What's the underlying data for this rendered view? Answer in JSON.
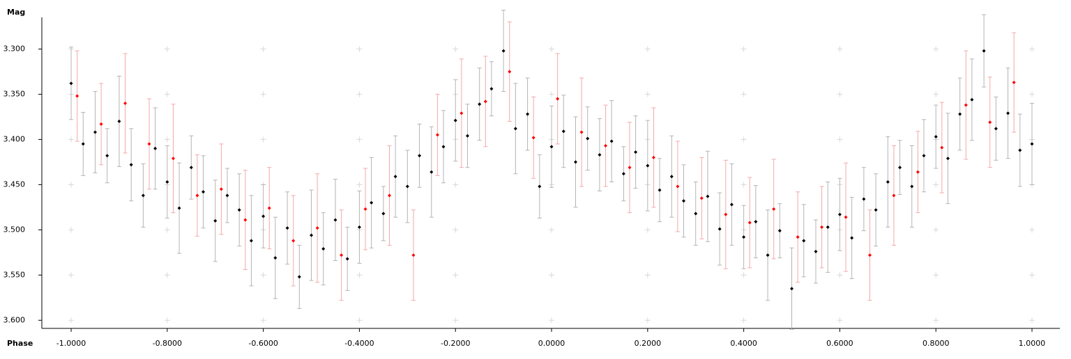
{
  "chart_data": {
    "type": "scatter",
    "x_label": "Phase",
    "y_label": "Mag",
    "xlim": [
      -1.061,
      1.058
    ],
    "ylim": [
      3.609,
      3.265
    ],
    "xticks": [
      {
        "value": -1.0,
        "label": "-1.0000"
      },
      {
        "value": -0.8,
        "label": "-0.8000"
      },
      {
        "value": -0.6,
        "label": "-0.6000"
      },
      {
        "value": -0.4,
        "label": "-0.4000"
      },
      {
        "value": -0.2,
        "label": "-0.2000"
      },
      {
        "value": 0,
        "label": "0.0000"
      },
      {
        "value": 0.2,
        "label": "0.2000"
      },
      {
        "value": 0.4,
        "label": "0.4000"
      },
      {
        "value": 0.6,
        "label": "0.6000"
      },
      {
        "value": 0.8,
        "label": "0.8000"
      },
      {
        "value": 1.0,
        "label": "1.0000"
      }
    ],
    "yticks": [
      {
        "value": 3.3,
        "label": "3.300"
      },
      {
        "value": 3.35,
        "label": "3.350"
      },
      {
        "value": 3.4,
        "label": "3.400"
      },
      {
        "value": 3.45,
        "label": "3.450"
      },
      {
        "value": 3.5,
        "label": "3.500"
      },
      {
        "value": 3.55,
        "label": "3.550"
      },
      {
        "value": 3.6,
        "label": "3.600"
      }
    ],
    "grid": true,
    "series": [
      {
        "color": "#000000",
        "error_color": "#b4b4b4",
        "x": [
          -1.0,
          -0.975,
          -0.95,
          -0.925,
          -0.9,
          -0.875,
          -0.85,
          -0.825,
          -0.8,
          -0.775,
          -0.75,
          -0.725,
          -0.7,
          -0.675,
          -0.65,
          -0.625,
          -0.6,
          -0.575,
          -0.55,
          -0.525,
          -0.5,
          -0.475,
          -0.45,
          -0.425,
          -0.4,
          -0.375,
          -0.35,
          -0.325,
          -0.3,
          -0.275,
          -0.25,
          -0.225,
          -0.2,
          -0.175,
          -0.15,
          -0.125,
          -0.1,
          -0.075,
          -0.05,
          -0.025,
          0.0,
          0.025,
          0.05,
          0.075,
          0.1,
          0.125,
          0.15,
          0.175,
          0.2,
          0.225,
          0.25,
          0.275,
          0.3,
          0.325,
          0.35,
          0.375,
          0.4,
          0.425,
          0.45,
          0.475,
          0.5,
          0.525,
          0.55,
          0.575,
          0.6,
          0.625,
          0.65,
          0.675,
          0.7,
          0.725,
          0.75,
          0.775,
          0.8,
          0.825,
          0.85,
          0.875,
          0.9,
          0.925,
          0.95,
          0.975,
          1.0
        ],
        "values": [
          3.338,
          3.405,
          3.392,
          3.418,
          3.38,
          3.428,
          3.462,
          3.41,
          3.447,
          3.476,
          3.431,
          3.458,
          3.49,
          3.462,
          3.478,
          3.512,
          3.485,
          3.531,
          3.498,
          3.552,
          3.506,
          3.521,
          3.489,
          3.532,
          3.497,
          3.47,
          3.482,
          3.441,
          3.452,
          3.418,
          3.436,
          3.408,
          3.379,
          3.396,
          3.361,
          3.344,
          3.302,
          3.388,
          3.372,
          3.452,
          3.408,
          3.391,
          3.425,
          3.399,
          3.417,
          3.402,
          3.438,
          3.414,
          3.429,
          3.456,
          3.441,
          3.468,
          3.482,
          3.463,
          3.499,
          3.472,
          3.508,
          3.491,
          3.528,
          3.501,
          3.565,
          3.512,
          3.524,
          3.497,
          3.483,
          3.509,
          3.466,
          3.478,
          3.447,
          3.431,
          3.452,
          3.418,
          3.397,
          3.421,
          3.372,
          3.356,
          3.302,
          3.388,
          3.371,
          3.412,
          3.405
        ],
        "errors": [
          0.04,
          0.035,
          0.045,
          0.03,
          0.05,
          0.04,
          0.035,
          0.045,
          0.04,
          0.05,
          0.035,
          0.04,
          0.045,
          0.03,
          0.04,
          0.05,
          0.035,
          0.045,
          0.04,
          0.035,
          0.05,
          0.04,
          0.045,
          0.035,
          0.04,
          0.05,
          0.03,
          0.045,
          0.04,
          0.035,
          0.05,
          0.04,
          0.045,
          0.035,
          0.04,
          0.03,
          0.045,
          0.05,
          0.04,
          0.035,
          0.045,
          0.04,
          0.05,
          0.035,
          0.04,
          0.045,
          0.03,
          0.04,
          0.05,
          0.035,
          0.045,
          0.04,
          0.035,
          0.05,
          0.04,
          0.045,
          0.035,
          0.04,
          0.05,
          0.03,
          0.045,
          0.04,
          0.035,
          0.05,
          0.04,
          0.045,
          0.035,
          0.04,
          0.05,
          0.03,
          0.045,
          0.04,
          0.035,
          0.05,
          0.04,
          0.045,
          0.04,
          0.035,
          0.05,
          0.04,
          0.045
        ]
      },
      {
        "color": "#ff0000",
        "error_color": "#f4a8a8",
        "x": [
          -0.9875,
          -0.9375,
          -0.8875,
          -0.8375,
          -0.7875,
          -0.7375,
          -0.6875,
          -0.6375,
          -0.5875,
          -0.5375,
          -0.4875,
          -0.4375,
          -0.3875,
          -0.3375,
          -0.2875,
          -0.2375,
          -0.1875,
          -0.1375,
          -0.0875,
          -0.0375,
          0.0125,
          0.0625,
          0.1125,
          0.1625,
          0.2125,
          0.2625,
          0.3125,
          0.3625,
          0.4125,
          0.4625,
          0.5125,
          0.5625,
          0.6125,
          0.6625,
          0.7125,
          0.7625,
          0.8125,
          0.8625,
          0.9125,
          0.9625
        ],
        "values": [
          3.352,
          3.383,
          3.36,
          3.405,
          3.421,
          3.462,
          3.455,
          3.489,
          3.476,
          3.512,
          3.498,
          3.528,
          3.477,
          3.462,
          3.528,
          3.395,
          3.371,
          3.358,
          3.325,
          3.398,
          3.355,
          3.392,
          3.407,
          3.431,
          3.42,
          3.452,
          3.465,
          3.483,
          3.492,
          3.477,
          3.508,
          3.497,
          3.486,
          3.528,
          3.462,
          3.436,
          3.409,
          3.362,
          3.381,
          3.337
        ],
        "errors": [
          0.05,
          0.045,
          0.055,
          0.05,
          0.06,
          0.045,
          0.05,
          0.055,
          0.045,
          0.05,
          0.06,
          0.05,
          0.045,
          0.055,
          0.05,
          0.045,
          0.06,
          0.05,
          0.055,
          0.045,
          0.05,
          0.06,
          0.045,
          0.05,
          0.055,
          0.05,
          0.045,
          0.06,
          0.05,
          0.055,
          0.05,
          0.045,
          0.06,
          0.05,
          0.055,
          0.045,
          0.05,
          0.06,
          0.05,
          0.055
        ]
      }
    ]
  }
}
